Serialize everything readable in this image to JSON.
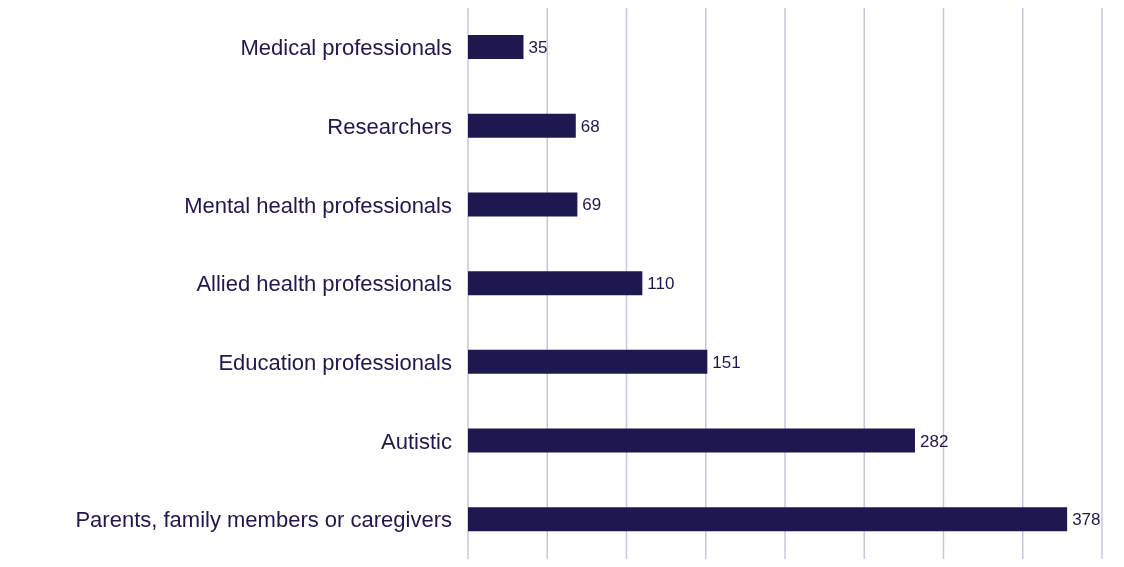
{
  "chart_data": {
    "type": "bar",
    "orientation": "horizontal",
    "categories": [
      "Medical professionals",
      "Researchers",
      "Mental health professionals",
      "Allied health professionals",
      "Education professionals",
      "Autistic",
      "Parents, family members or caregivers"
    ],
    "values": [
      35,
      68,
      69,
      110,
      151,
      282,
      378
    ],
    "color": "#1e1850",
    "xlim": [
      0,
      400
    ],
    "xticks": [
      {
        "value": 0,
        "label": null
      },
      {
        "value": 50,
        "label": null
      },
      {
        "value": 100,
        "label": null
      },
      {
        "value": 150,
        "label": null
      },
      {
        "value": 200,
        "label": null
      },
      {
        "value": 250,
        "label": null
      },
      {
        "value": 300,
        "label": null
      },
      {
        "value": 350,
        "label": null
      },
      {
        "value": 400,
        "label": null
      }
    ],
    "grid": "x",
    "tick_labels": "y",
    "data_labels": true
  }
}
